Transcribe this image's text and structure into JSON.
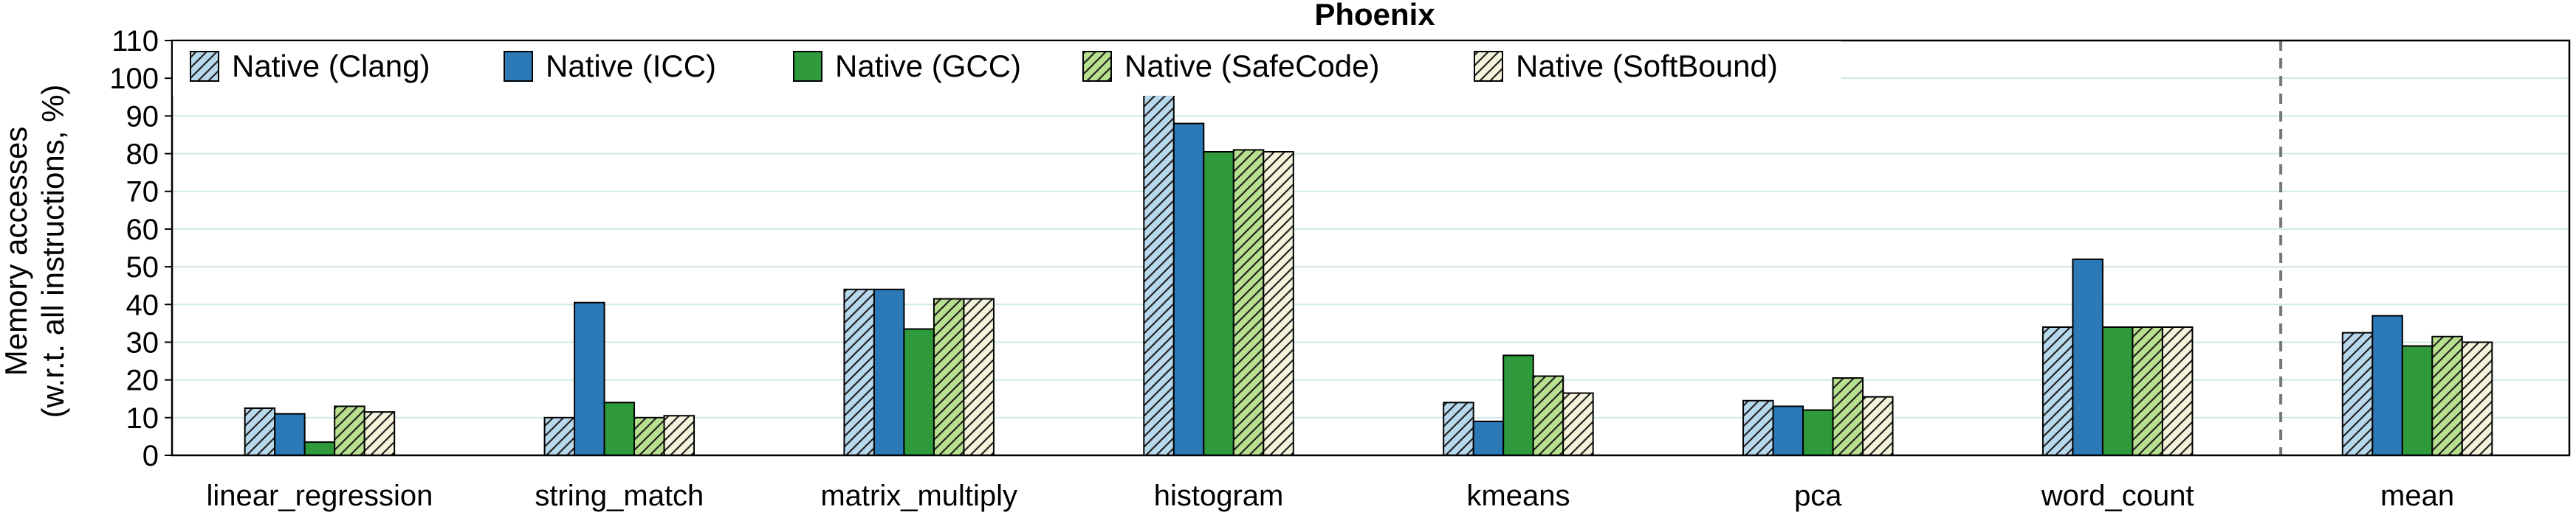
{
  "chart_data": {
    "type": "bar",
    "title": "Phoenix",
    "ylabel_line1": "Memory accesses",
    "ylabel_line2": "(w.r.t. all instructions, %)",
    "xlabel": "",
    "ylim": [
      0,
      110
    ],
    "yticks": [
      0,
      10,
      20,
      30,
      40,
      50,
      60,
      70,
      80,
      90,
      100,
      110
    ],
    "grid": "horizontal",
    "legend_placement": "top-left",
    "categories": [
      "linear_regression",
      "string_match",
      "matrix_multiply",
      "histogram",
      "kmeans",
      "pca",
      "word_count",
      "mean"
    ],
    "separator_before_category": "mean",
    "series": [
      {
        "name": "Native (Clang)",
        "style": "hatched",
        "fill": "#b8d8ec",
        "values": [
          12.5,
          10,
          44,
          96,
          14,
          14.5,
          34,
          32.5
        ]
      },
      {
        "name": "Native (ICC)",
        "style": "solid",
        "fill": "#2b79b6",
        "values": [
          11,
          40.5,
          44,
          88,
          9,
          13,
          52,
          37
        ]
      },
      {
        "name": "Native (GCC)",
        "style": "solid",
        "fill": "#2f9a3b",
        "values": [
          3.5,
          14,
          33.5,
          80.5,
          26.5,
          12,
          34,
          29
        ]
      },
      {
        "name": "Native (SafeCode)",
        "style": "hatched",
        "fill": "#b7e08f",
        "values": [
          13,
          10,
          41.5,
          81,
          21,
          20.5,
          34,
          31.5
        ]
      },
      {
        "name": "Native (SoftBound)",
        "style": "hatched",
        "fill": "#f4f3dc",
        "values": [
          11.5,
          10.5,
          41.5,
          80.5,
          16.5,
          15.5,
          34,
          30
        ]
      }
    ]
  }
}
